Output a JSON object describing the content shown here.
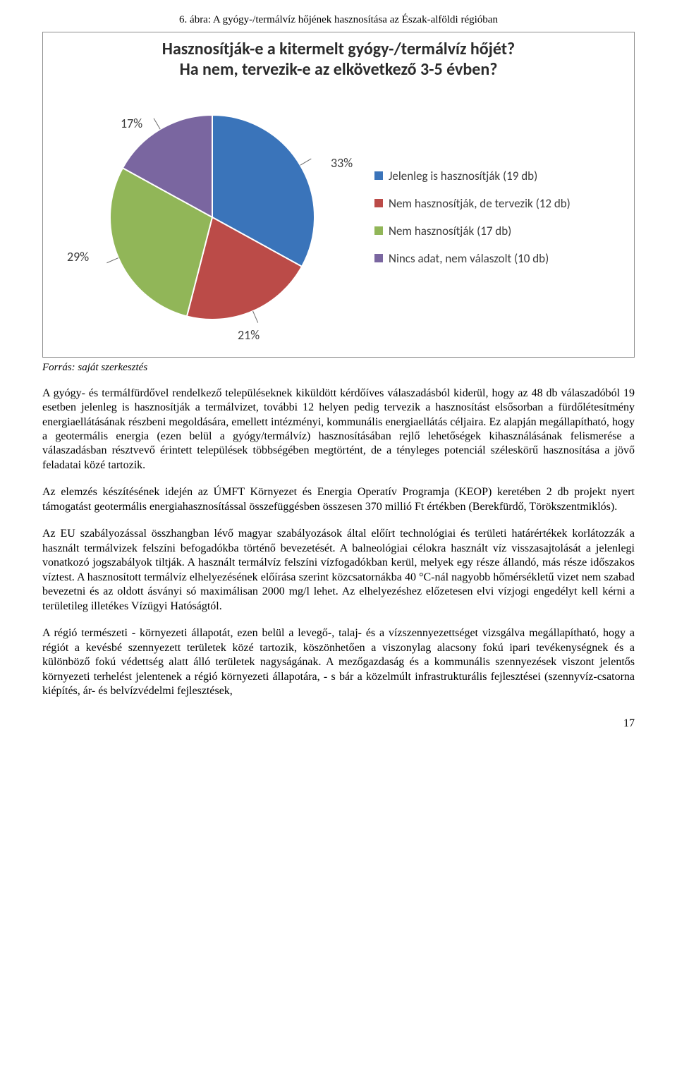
{
  "caption": "6. ábra: A gyógy-/termálvíz hőjének hasznosítása az Észak-alföldi régióban",
  "chart": {
    "type": "pie",
    "title_line1": "Hasznosítják-e a kitermelt gyógy-/termálvíz hőjét?",
    "title_line2": "Ha nem, tervezik-e az elkövetkező 3-5 évben?",
    "title_fontsize": 24,
    "title_color": "#2b2b2b",
    "background_color": "#ffffff",
    "border_color": "#8c8c8c",
    "slices": [
      {
        "label": "Jelenleg is hasznosítják (19 db)",
        "percent": 33,
        "percent_label": "33%",
        "color": "#3a74ba"
      },
      {
        "label": "Nem hasznosítják, de tervezik (12 db)",
        "percent": 21,
        "percent_label": "21%",
        "color": "#bb4b48"
      },
      {
        "label": "Nem hasznosítják (17 db)",
        "percent": 29,
        "percent_label": "29%",
        "color": "#91b658"
      },
      {
        "label": "Nincs adat, nem válaszolt (10 db)",
        "percent": 17,
        "percent_label": "17%",
        "color": "#7a66a0"
      }
    ],
    "label_fontsize": 18,
    "label_color": "#3c3c3c",
    "legend_fontsize": 17,
    "legend_color": "#3c3c3c",
    "slice_border_color": "#ffffff",
    "radius": 145
  },
  "source": "Forrás: saját szerkesztés",
  "paragraphs": {
    "p1": "A gyógy- és termálfürdővel rendelkező településeknek kiküldött kérdőíves válaszadásból kiderül, hogy az 48 db válaszadóból 19 esetben jelenleg is hasznosítják a termálvizet, további 12 helyen pedig tervezik a hasznosítást elsősorban a fürdőlétesítmény energiaellátásának részbeni megoldására, emellett intézményi, kommunális energiaellátás céljaira. Ez alapján megállapítható, hogy a geotermális energia (ezen belül a gyógy/termálvíz) hasznosításában rejlő lehetőségek kihasználásának felismerése a válaszadásban résztvevő érintett települések többségében megtörtént, de a tényleges potenciál széleskörű hasznosítása a jövő feladatai közé tartozik.",
    "p2": "Az elemzés készítésének idején az ÚMFT Környezet és Energia Operatív Programja (KEOP) keretében 2 db projekt nyert támogatást geotermális energiahasznosítással összefüggésben összesen 370 millió Ft értékben (Berekfürdő, Törökszentmiklós).",
    "p3": "Az EU szabályozással összhangban lévő magyar szabályozások által előírt technológiai és területi határértékek korlátozzák a használt termálvizek felszíni befogadókba történő bevezetését. A balneológiai célokra használt víz visszasajtolását a jelenlegi vonatkozó jogszabályok tiltják. A használt termálvíz felszíni vízfogadókban kerül, melyek egy része állandó, más része időszakos víztest. A hasznosított termálvíz elhelyezésének előírása szerint közcsatornákba 40 °C-nál nagyobb hőmérsékletű vizet nem szabad bevezetni és az oldott ásványi só maximálisan 2000 mg/l lehet. Az elhelyezéshez előzetesen elvi vízjogi engedélyt kell kérni a területileg illetékes Vízügyi Hatóságtól.",
    "p4": "A régió természeti - környezeti állapotát, ezen belül a levegő-, talaj- és a vízszennyezettséget vizsgálva megállapítható, hogy a régiót a kevésbé szennyezett területek közé tartozik, köszönhetően a viszonylag alacsony fokú ipari tevékenységnek és a különböző fokú védettség alatt álló területek nagyságának. A mezőgazdaság és a kommunális szennyezések viszont jelentős környezeti terhelést jelentenek a régió környezeti állapotára, - s bár a közelmúlt infrastrukturális fejlesztései (szennyvíz-csatorna kiépítés, ár- és belvízvédelmi fejlesztések,"
  },
  "page_number": "17"
}
